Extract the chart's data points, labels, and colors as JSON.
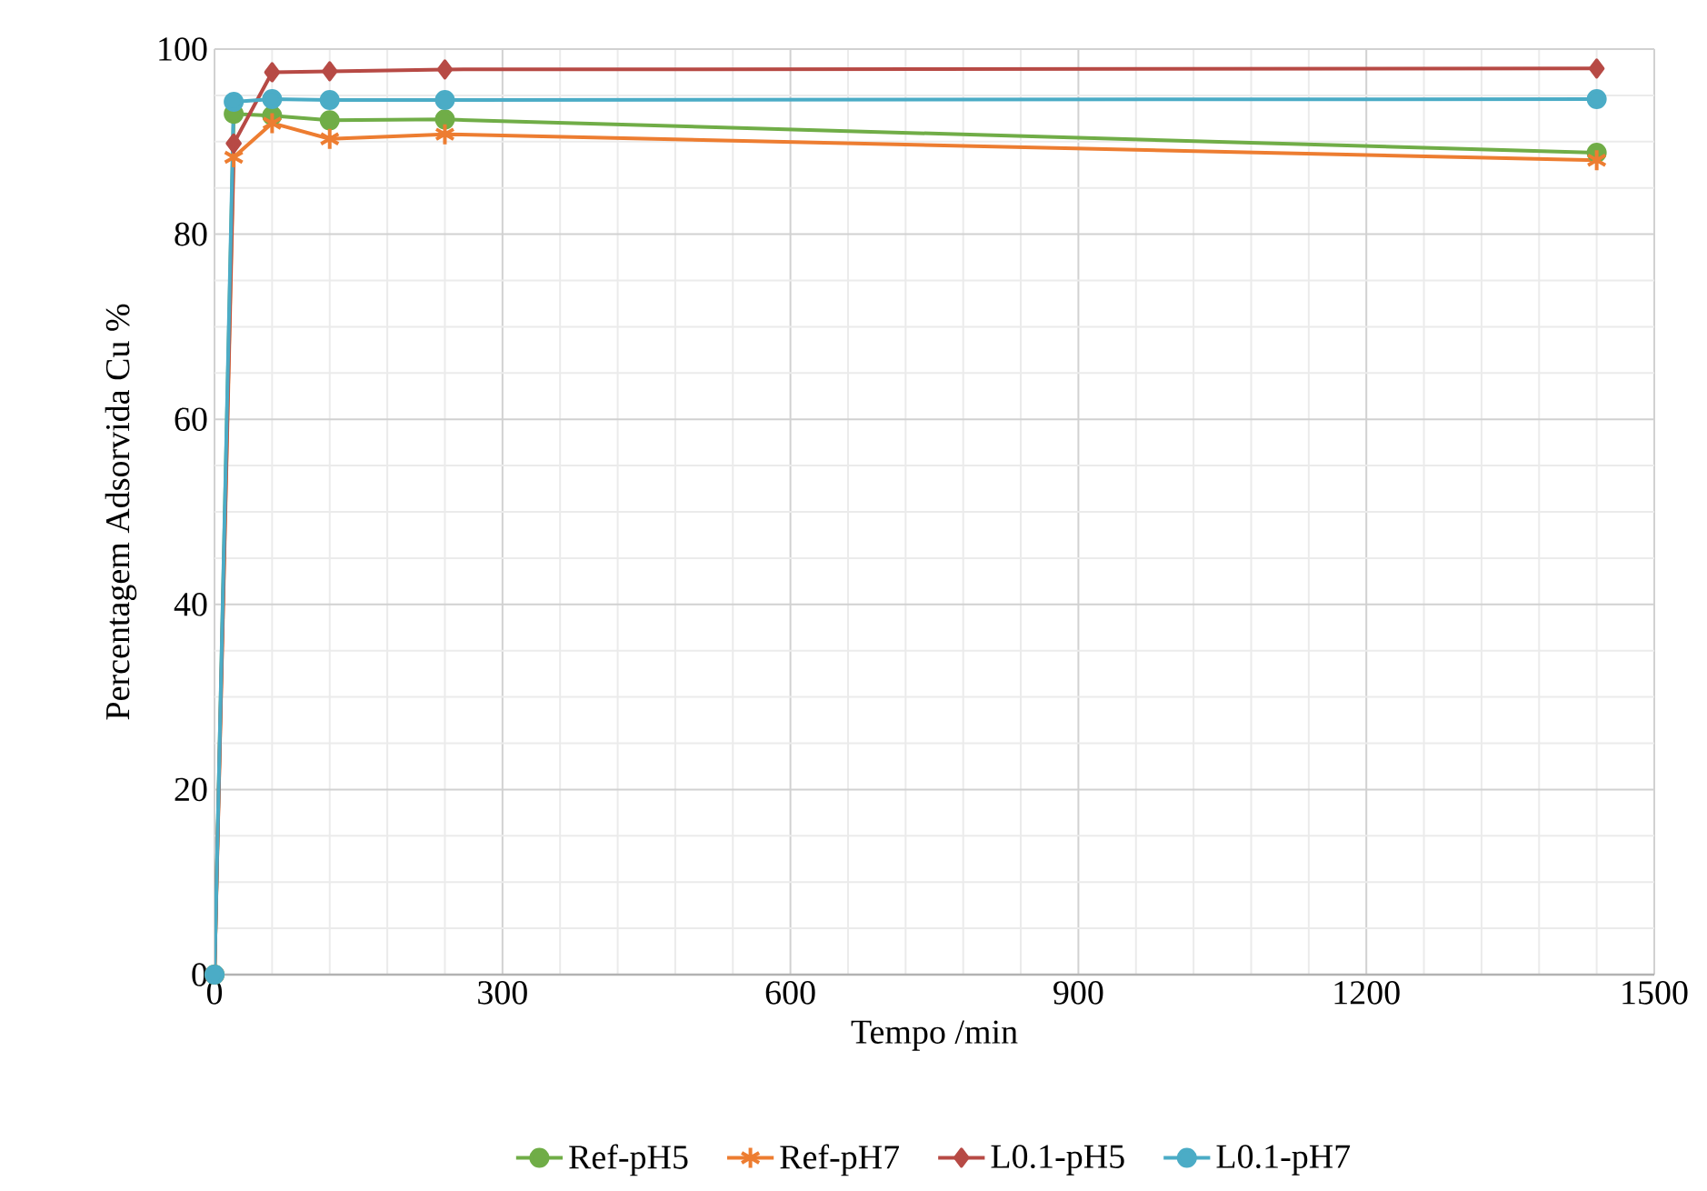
{
  "chart_data": {
    "type": "line",
    "xlabel": "Tempo /min",
    "ylabel": "Percentagem Adsorvida Cu %",
    "x": [
      0,
      20,
      60,
      120,
      240,
      1440
    ],
    "series": [
      {
        "name": "Ref-pH5",
        "color": "#70ad47",
        "marker": "circle",
        "values": [
          0,
          93,
          92.8,
          92.3,
          92.4,
          88.8
        ]
      },
      {
        "name": "Ref-pH7",
        "color": "#ed7d31",
        "marker": "cross",
        "values": [
          0,
          88.3,
          92,
          90.3,
          90.8,
          88
        ]
      },
      {
        "name": "L0.1-pH5",
        "color": "#b74a45",
        "marker": "diamond",
        "values": [
          0,
          89.8,
          97.5,
          97.6,
          97.8,
          97.9
        ]
      },
      {
        "name": "L0.1-pH7",
        "color": "#4bacc6",
        "marker": "circle",
        "values": [
          0,
          94.3,
          94.6,
          94.5,
          94.5,
          94.6
        ]
      }
    ],
    "xlim": [
      0,
      1500
    ],
    "xticks": [
      0,
      300,
      600,
      900,
      1200,
      1500
    ],
    "ylim": [
      0,
      100
    ],
    "yticks": [
      0,
      20,
      40,
      60,
      80,
      100
    ],
    "grid": true,
    "legend": "bottom",
    "line_style": "solid"
  }
}
